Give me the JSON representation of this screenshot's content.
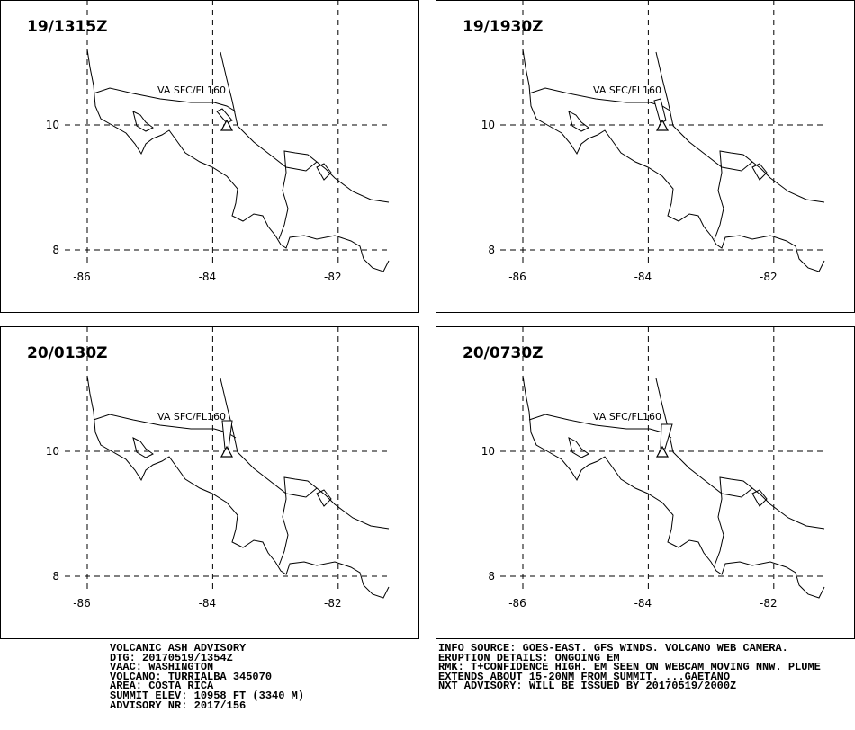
{
  "map": {
    "lon_ticks": [
      -86,
      -84,
      -82
    ],
    "lat_ticks": [
      10,
      8
    ],
    "plume_label": "VA SFC/FL160",
    "panels": [
      {
        "time": "19/1315Z"
      },
      {
        "time": "19/1930Z"
      },
      {
        "time": "20/0130Z"
      },
      {
        "time": "20/0730Z"
      }
    ]
  },
  "advisory": {
    "left": [
      "VOLCANIC ASH ADVISORY",
      "DTG: 20170519/1354Z",
      "VAAC: WASHINGTON",
      "VOLCANO: TURRIALBA 345070",
      "AREA: COSTA RICA",
      "SUMMIT ELEV: 10958 FT (3340 M)",
      "ADVISORY NR: 2017/156"
    ],
    "right": [
      "INFO SOURCE: GOES-EAST. GFS WINDS. VOLCANO WEB CAMERA.",
      "ERUPTION DETAILS: ONGOING EM",
      "RMK: T+CONFIDENCE HIGH. EM SEEN ON WEBCAM MOVING NNW. PLUME",
      "EXTENDS ABOUT 15-20NM FROM SUMMIT. ...GAETANO",
      "NXT ADVISORY: WILL BE ISSUED BY 20170519/2000Z"
    ]
  }
}
